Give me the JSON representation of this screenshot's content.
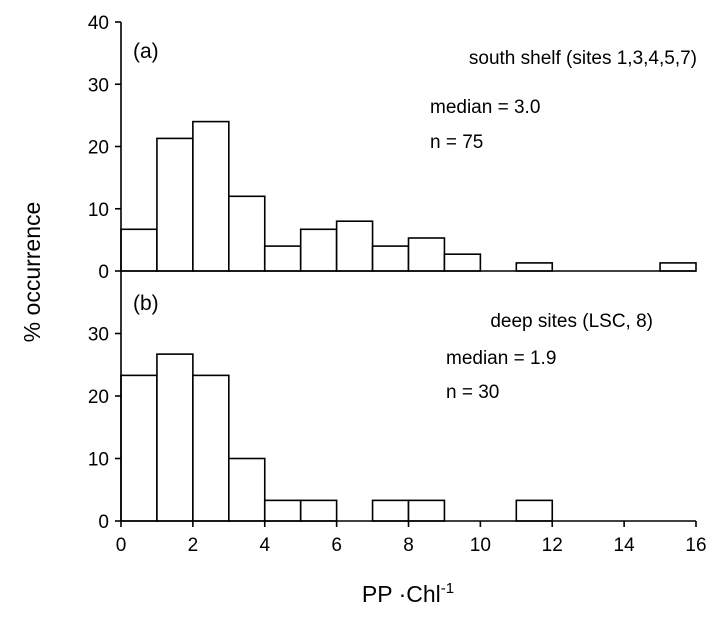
{
  "chart_data": {
    "type": "bar",
    "xlabel": {
      "main": "PP ·Chl",
      "superscript": "-1"
    },
    "ylabel": "% occurrence",
    "xlim": [
      0,
      16
    ],
    "x_ticks": [
      "0",
      "2",
      "4",
      "6",
      "8",
      "10",
      "12",
      "14",
      "16"
    ],
    "bin_width": 1,
    "bin_starts": [
      0,
      1,
      2,
      3,
      4,
      5,
      6,
      7,
      8,
      9,
      10,
      11,
      12,
      13,
      14,
      15
    ],
    "panels": [
      {
        "label": "(a)",
        "subtitle": "south shelf (sites 1,3,4,5,7)",
        "median_text": "median = 3.0",
        "n_text": "n = 75",
        "ylim": [
          0,
          40
        ],
        "y_ticks": [
          "0",
          "10",
          "20",
          "30",
          "40"
        ],
        "values": [
          6.7,
          21.3,
          24.0,
          12.0,
          4.0,
          6.7,
          8.0,
          4.0,
          5.3,
          2.7,
          0,
          1.3,
          0,
          0,
          0,
          1.3
        ]
      },
      {
        "label": "(b)",
        "subtitle": "deep sites (LSC, 8)",
        "median_text": "median = 1.9",
        "n_text": "n = 30",
        "ylim": [
          0,
          40
        ],
        "y_ticks": [
          "0",
          "10",
          "20",
          "30"
        ],
        "values": [
          23.3,
          26.7,
          23.3,
          10.0,
          3.3,
          3.3,
          0,
          3.3,
          3.3,
          0,
          0,
          3.3,
          0,
          0,
          0,
          0
        ]
      }
    ]
  }
}
